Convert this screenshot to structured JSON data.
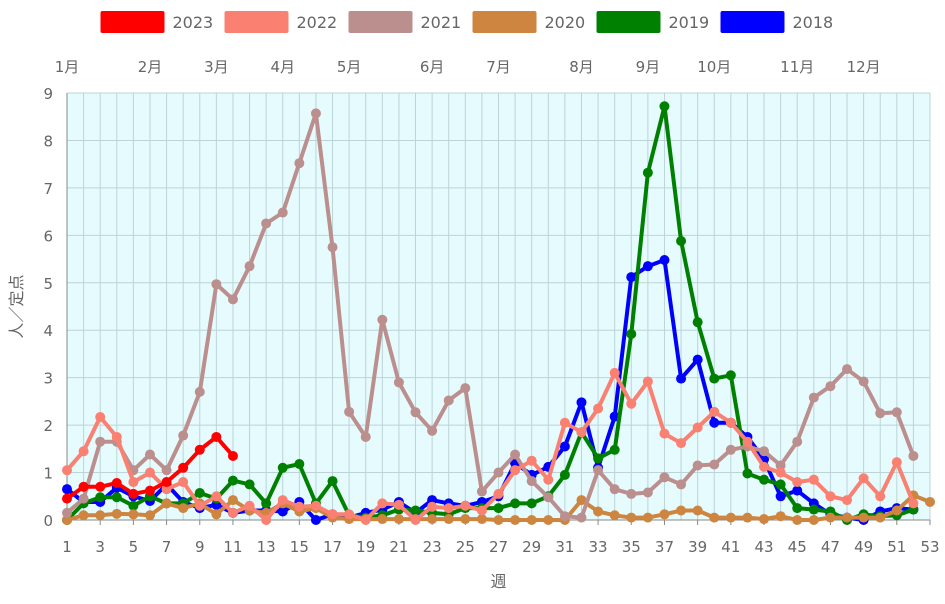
{
  "chart_data": {
    "type": "line",
    "xlabel": "週",
    "ylabel": "人／定点",
    "xlim": [
      1,
      53
    ],
    "ylim": [
      0,
      9
    ],
    "x_ticks": [
      1,
      3,
      5,
      7,
      9,
      11,
      13,
      15,
      17,
      19,
      21,
      23,
      25,
      27,
      29,
      31,
      33,
      35,
      37,
      39,
      41,
      43,
      45,
      47,
      49,
      51,
      53
    ],
    "y_ticks": [
      0,
      1,
      2,
      3,
      4,
      5,
      6,
      7,
      8,
      9
    ],
    "month_labels": [
      {
        "label": "1月",
        "week": 1
      },
      {
        "label": "2月",
        "week": 6
      },
      {
        "label": "3月",
        "week": 10
      },
      {
        "label": "4月",
        "week": 14
      },
      {
        "label": "5月",
        "week": 18
      },
      {
        "label": "6月",
        "week": 23
      },
      {
        "label": "7月",
        "week": 27
      },
      {
        "label": "8月",
        "week": 32
      },
      {
        "label": "9月",
        "week": 36
      },
      {
        "label": "10月",
        "week": 40
      },
      {
        "label": "11月",
        "week": 45
      },
      {
        "label": "12月",
        "week": 49
      }
    ],
    "grid": true,
    "legend_position": "top",
    "plot_background": "#e6fbfd",
    "grid_color": "#bcd4d8",
    "series": [
      {
        "name": "2023",
        "color": "#ff0000",
        "x": [
          1,
          2,
          3,
          4,
          5,
          6,
          7,
          8,
          9,
          10,
          11
        ],
        "values": [
          0.45,
          0.7,
          0.7,
          0.78,
          0.55,
          0.62,
          0.8,
          1.1,
          1.48,
          1.75,
          1.35
        ]
      },
      {
        "name": "2022",
        "color": "#fa8072",
        "x": [
          1,
          2,
          3,
          4,
          5,
          6,
          7,
          8,
          9,
          10,
          11,
          12,
          13,
          14,
          15,
          16,
          17,
          18,
          19,
          20,
          21,
          22,
          23,
          24,
          25,
          26,
          27,
          28,
          29,
          30,
          31,
          32,
          33,
          34,
          35,
          36,
          37,
          38,
          39,
          40,
          41,
          42,
          43,
          44,
          45,
          46,
          47,
          48,
          49,
          50,
          51,
          52
        ],
        "values": [
          1.05,
          1.45,
          2.17,
          1.75,
          0.8,
          1.0,
          0.65,
          0.8,
          0.3,
          0.5,
          0.15,
          0.3,
          0.0,
          0.42,
          0.28,
          0.3,
          0.12,
          0.12,
          0.0,
          0.35,
          0.32,
          0.0,
          0.28,
          0.25,
          0.3,
          0.2,
          0.55,
          1.05,
          1.25,
          0.85,
          2.05,
          1.85,
          2.35,
          3.1,
          2.45,
          2.92,
          1.82,
          1.62,
          1.95,
          2.28,
          2.05,
          1.65,
          1.12,
          1.0,
          0.8,
          0.85,
          0.5,
          0.42,
          0.88,
          0.5,
          1.22,
          0.35
        ]
      },
      {
        "name": "2021",
        "color": "#bc8f8f",
        "x": [
          1,
          2,
          3,
          4,
          5,
          6,
          7,
          8,
          9,
          10,
          11,
          12,
          13,
          14,
          15,
          16,
          17,
          18,
          19,
          20,
          21,
          22,
          23,
          24,
          25,
          26,
          27,
          28,
          29,
          30,
          31,
          32,
          33,
          34,
          35,
          36,
          37,
          38,
          39,
          40,
          41,
          42,
          43,
          44,
          45,
          46,
          47,
          48,
          49,
          50,
          51,
          52
        ],
        "values": [
          0.15,
          0.45,
          1.65,
          1.65,
          1.05,
          1.38,
          1.05,
          1.78,
          2.7,
          4.97,
          4.65,
          5.35,
          6.25,
          6.48,
          7.52,
          8.57,
          5.75,
          2.28,
          1.75,
          4.22,
          2.9,
          2.27,
          1.88,
          2.52,
          2.78,
          0.6,
          1.0,
          1.38,
          0.82,
          0.48,
          0.08,
          0.05,
          1.05,
          0.65,
          0.55,
          0.58,
          0.9,
          0.75,
          1.15,
          1.17,
          1.48,
          1.55,
          1.45,
          1.15,
          1.65,
          2.58,
          2.82,
          3.18,
          2.92,
          2.25,
          2.27,
          1.35
        ]
      },
      {
        "name": "2020",
        "color": "#cd853f",
        "x": [
          1,
          2,
          3,
          4,
          5,
          6,
          7,
          8,
          9,
          10,
          11,
          12,
          13,
          14,
          15,
          16,
          17,
          18,
          19,
          20,
          21,
          22,
          23,
          24,
          25,
          26,
          27,
          28,
          29,
          30,
          31,
          32,
          33,
          34,
          35,
          36,
          37,
          38,
          39,
          40,
          41,
          42,
          43,
          44,
          45,
          46,
          47,
          48,
          49,
          50,
          51,
          52,
          53
        ],
        "values": [
          0.0,
          0.1,
          0.1,
          0.13,
          0.12,
          0.1,
          0.35,
          0.25,
          0.35,
          0.12,
          0.42,
          0.2,
          0.15,
          0.35,
          0.18,
          0.25,
          0.05,
          0.02,
          0.02,
          0.02,
          0.02,
          0.02,
          0.02,
          0.02,
          0.02,
          0.02,
          0.0,
          0.0,
          0.0,
          0.0,
          0.0,
          0.42,
          0.18,
          0.1,
          0.05,
          0.05,
          0.12,
          0.2,
          0.2,
          0.05,
          0.05,
          0.05,
          0.02,
          0.08,
          0.0,
          0.0,
          0.05,
          0.05,
          0.05,
          0.05,
          0.2,
          0.52,
          0.38
        ]
      },
      {
        "name": "2019",
        "color": "#008000",
        "x": [
          1,
          2,
          3,
          4,
          5,
          6,
          7,
          8,
          9,
          10,
          11,
          12,
          13,
          14,
          15,
          16,
          17,
          18,
          19,
          20,
          21,
          22,
          23,
          24,
          25,
          26,
          27,
          28,
          29,
          30,
          31,
          32,
          33,
          34,
          35,
          36,
          37,
          38,
          39,
          40,
          41,
          42,
          43,
          44,
          45,
          46,
          47,
          48,
          49,
          50,
          51,
          52
        ],
        "values": [
          0.0,
          0.35,
          0.48,
          0.48,
          0.3,
          0.5,
          0.35,
          0.35,
          0.57,
          0.45,
          0.83,
          0.75,
          0.35,
          1.1,
          1.18,
          0.35,
          0.82,
          0.1,
          0.05,
          0.1,
          0.22,
          0.2,
          0.15,
          0.12,
          0.25,
          0.25,
          0.25,
          0.35,
          0.35,
          0.5,
          0.95,
          1.85,
          1.3,
          1.48,
          3.92,
          7.32,
          8.72,
          5.88,
          4.17,
          2.98,
          3.05,
          0.98,
          0.85,
          0.75,
          0.25,
          0.22,
          0.18,
          0.0,
          0.12,
          0.08,
          0.1,
          0.22
        ]
      },
      {
        "name": "2018",
        "color": "#0000ff",
        "x": [
          1,
          2,
          3,
          4,
          5,
          6,
          7,
          8,
          9,
          10,
          11,
          12,
          13,
          14,
          15,
          16,
          17,
          18,
          19,
          20,
          21,
          22,
          23,
          24,
          25,
          26,
          27,
          28,
          29,
          30,
          31,
          32,
          33,
          34,
          35,
          36,
          37,
          38,
          39,
          40,
          41,
          42,
          43,
          44,
          45,
          46,
          47,
          48,
          49,
          50,
          51,
          52
        ],
        "values": [
          0.65,
          0.38,
          0.38,
          0.68,
          0.5,
          0.4,
          0.75,
          0.38,
          0.25,
          0.32,
          0.15,
          0.2,
          0.2,
          0.18,
          0.38,
          0.0,
          0.12,
          0.05,
          0.15,
          0.22,
          0.38,
          0.15,
          0.42,
          0.35,
          0.3,
          0.38,
          0.5,
          1.2,
          0.95,
          1.12,
          1.55,
          2.48,
          1.1,
          2.18,
          5.12,
          5.35,
          5.48,
          2.98,
          3.38,
          2.05,
          2.05,
          1.75,
          1.28,
          0.5,
          0.62,
          0.35,
          0.12,
          0.05,
          0.0,
          0.18,
          0.25,
          0.22
        ]
      }
    ]
  }
}
